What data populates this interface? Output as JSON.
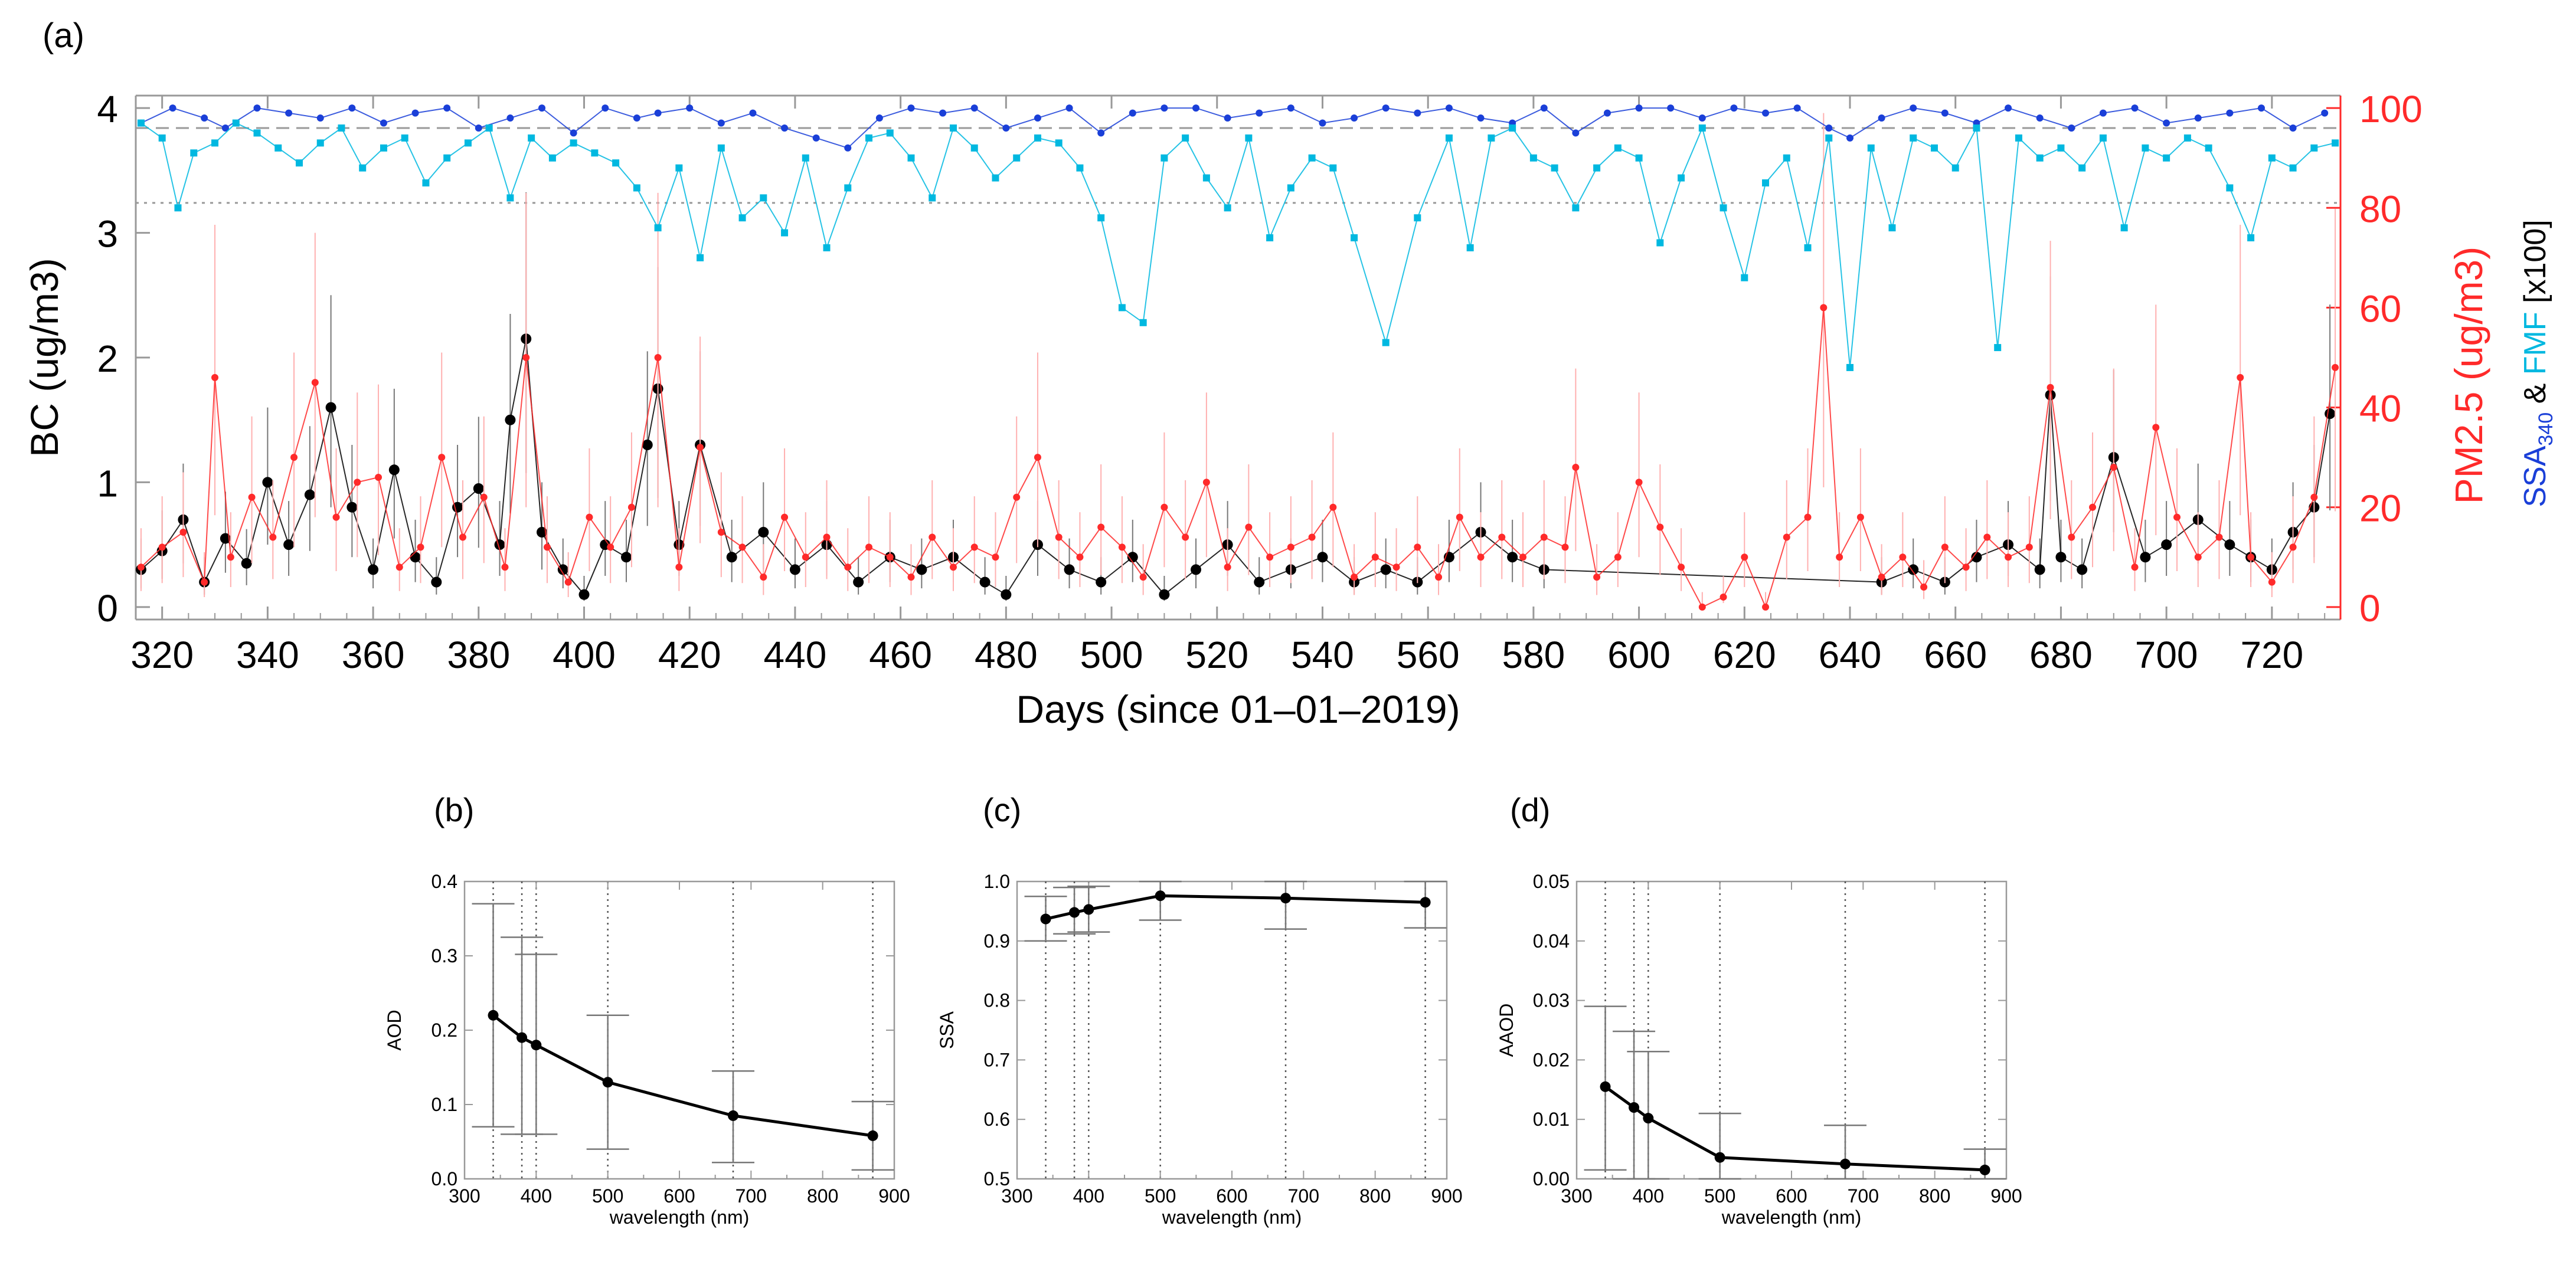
{
  "chart_data": [
    {
      "panel": "(a)",
      "type": "line",
      "title": "",
      "xlabel": "Days (since 01–01–2019)",
      "ylabel_left": "BC (ug/m3)",
      "ylabel_right_1": "PM2.5 (ug/m3)",
      "ylabel_right_2_parts": [
        "SSA",
        "340",
        " & ",
        "FMF",
        " [x100]"
      ],
      "xlim": [
        315,
        733
      ],
      "ylim_left": [
        -0.1,
        4.1
      ],
      "ylim_right": [
        -2.5,
        102.5
      ],
      "xticks": [
        320,
        340,
        360,
        380,
        400,
        420,
        440,
        460,
        480,
        500,
        520,
        540,
        560,
        580,
        600,
        620,
        640,
        660,
        680,
        700,
        720
      ],
      "yticks_left": [
        0,
        1,
        2,
        3,
        4
      ],
      "yticks_right": [
        0,
        20,
        40,
        60,
        80,
        100
      ],
      "ref_lines_right": [
        {
          "value": 96,
          "style": "dashed"
        },
        {
          "value": 81,
          "style": "dotted"
        }
      ],
      "colors": {
        "bc": "#000000",
        "pm25": "#ff2a2a",
        "ssa": "#1a3fd8",
        "fmf": "#00b8e0",
        "right_axis": "#ff2a2a"
      },
      "series": [
        {
          "name": "BC",
          "axis": "left",
          "x": [
            316,
            320,
            324,
            328,
            332,
            336,
            340,
            344,
            348,
            352,
            356,
            360,
            364,
            368,
            372,
            376,
            380,
            384,
            386,
            389,
            392,
            396,
            400,
            404,
            408,
            412,
            414,
            418,
            422,
            428,
            434,
            440,
            446,
            452,
            458,
            464,
            470,
            476,
            480,
            486,
            492,
            498,
            504,
            510,
            516,
            522,
            528,
            534,
            540,
            546,
            552,
            558,
            564,
            570,
            576,
            582,
            646,
            652,
            658,
            664,
            670,
            676,
            678,
            680,
            684,
            690,
            696,
            700,
            706,
            712,
            716,
            720,
            724,
            728,
            731
          ],
          "values": [
            0.3,
            0.45,
            0.7,
            0.2,
            0.55,
            0.35,
            1.0,
            0.5,
            0.9,
            1.6,
            0.8,
            0.3,
            1.1,
            0.4,
            0.2,
            0.8,
            0.95,
            0.5,
            1.5,
            2.15,
            0.6,
            0.3,
            0.1,
            0.5,
            0.4,
            1.3,
            1.75,
            0.5,
            1.3,
            0.4,
            0.6,
            0.3,
            0.5,
            0.2,
            0.4,
            0.3,
            0.4,
            0.2,
            0.1,
            0.5,
            0.3,
            0.2,
            0.4,
            0.1,
            0.3,
            0.5,
            0.2,
            0.3,
            0.4,
            0.2,
            0.3,
            0.2,
            0.4,
            0.6,
            0.4,
            0.3,
            0.2,
            0.3,
            0.2,
            0.4,
            0.5,
            0.3,
            1.7,
            0.4,
            0.3,
            1.2,
            0.4,
            0.5,
            0.7,
            0.5,
            0.4,
            0.3,
            0.6,
            0.8,
            1.55
          ]
        },
        {
          "name": "PM2.5",
          "axis": "right",
          "x": [
            316,
            320,
            324,
            328,
            330,
            333,
            337,
            341,
            345,
            349,
            353,
            357,
            361,
            365,
            369,
            373,
            377,
            381,
            385,
            389,
            393,
            397,
            401,
            405,
            409,
            414,
            418,
            422,
            426,
            430,
            434,
            438,
            442,
            446,
            450,
            454,
            458,
            462,
            466,
            470,
            474,
            478,
            482,
            486,
            490,
            494,
            498,
            502,
            506,
            510,
            514,
            518,
            522,
            526,
            530,
            534,
            538,
            542,
            546,
            550,
            554,
            558,
            562,
            566,
            570,
            574,
            578,
            582,
            586,
            588,
            592,
            596,
            600,
            604,
            608,
            612,
            616,
            620,
            624,
            628,
            632,
            635,
            638,
            642,
            646,
            650,
            654,
            658,
            662,
            666,
            670,
            674,
            678,
            682,
            686,
            690,
            694,
            698,
            702,
            706,
            710,
            714,
            716,
            720,
            724,
            728,
            732
          ],
          "values": [
            8,
            12,
            15,
            5,
            46,
            10,
            22,
            14,
            30,
            45,
            18,
            25,
            26,
            8,
            12,
            30,
            14,
            22,
            8,
            50,
            12,
            5,
            18,
            12,
            20,
            50,
            8,
            32,
            15,
            12,
            6,
            18,
            10,
            14,
            8,
            12,
            10,
            6,
            14,
            8,
            12,
            10,
            22,
            30,
            14,
            10,
            16,
            12,
            6,
            20,
            14,
            25,
            8,
            16,
            10,
            12,
            14,
            20,
            6,
            10,
            8,
            12,
            6,
            18,
            10,
            14,
            10,
            14,
            12,
            28,
            6,
            10,
            25,
            16,
            8,
            0,
            2,
            10,
            0,
            14,
            18,
            60,
            10,
            18,
            6,
            10,
            4,
            12,
            8,
            14,
            10,
            12,
            44,
            14,
            20,
            28,
            8,
            36,
            18,
            10,
            14,
            46,
            10,
            5,
            12,
            22,
            48
          ]
        },
        {
          "name": "SSA340 [x100]",
          "axis": "right",
          "x": [
            316,
            322,
            328,
            332,
            338,
            344,
            350,
            356,
            362,
            368,
            374,
            380,
            386,
            392,
            398,
            404,
            410,
            414,
            420,
            426,
            432,
            438,
            444,
            450,
            456,
            462,
            468,
            474,
            480,
            486,
            492,
            498,
            504,
            510,
            516,
            522,
            528,
            534,
            540,
            546,
            552,
            558,
            564,
            570,
            576,
            582,
            588,
            594,
            600,
            606,
            612,
            618,
            624,
            630,
            636,
            640,
            646,
            652,
            658,
            664,
            670,
            676,
            682,
            688,
            694,
            700,
            706,
            712,
            718,
            724,
            730
          ],
          "values": [
            97,
            100,
            98,
            96,
            100,
            99,
            98,
            100,
            97,
            99,
            100,
            96,
            98,
            100,
            95,
            100,
            98,
            99,
            100,
            97,
            99,
            96,
            94,
            92,
            98,
            100,
            99,
            100,
            96,
            98,
            100,
            95,
            99,
            100,
            100,
            98,
            99,
            100,
            97,
            98,
            100,
            99,
            100,
            98,
            97,
            100,
            95,
            99,
            100,
            100,
            98,
            100,
            99,
            100,
            96,
            94,
            98,
            100,
            99,
            97,
            100,
            98,
            96,
            99,
            100,
            97,
            98,
            99,
            100,
            96,
            99
          ]
        },
        {
          "name": "FMF [x100]",
          "axis": "right",
          "x": [
            316,
            320,
            323,
            326,
            330,
            334,
            338,
            342,
            346,
            350,
            354,
            358,
            362,
            366,
            370,
            374,
            378,
            382,
            386,
            390,
            394,
            398,
            402,
            406,
            410,
            414,
            418,
            422,
            426,
            430,
            434,
            438,
            442,
            446,
            450,
            454,
            458,
            462,
            466,
            470,
            474,
            478,
            482,
            486,
            490,
            494,
            498,
            502,
            506,
            510,
            514,
            518,
            522,
            526,
            530,
            534,
            538,
            542,
            546,
            552,
            558,
            564,
            568,
            572,
            576,
            580,
            584,
            588,
            592,
            596,
            600,
            604,
            608,
            612,
            616,
            620,
            624,
            628,
            632,
            636,
            640,
            644,
            648,
            652,
            656,
            660,
            664,
            668,
            672,
            676,
            680,
            684,
            688,
            692,
            696,
            700,
            704,
            708,
            712,
            716,
            720,
            724,
            728,
            732
          ],
          "values": [
            97,
            94,
            80,
            91,
            93,
            97,
            95,
            92,
            89,
            93,
            96,
            88,
            92,
            94,
            85,
            90,
            93,
            96,
            82,
            94,
            90,
            93,
            91,
            89,
            84,
            76,
            88,
            70,
            92,
            78,
            82,
            75,
            90,
            72,
            84,
            94,
            95,
            90,
            82,
            96,
            92,
            86,
            90,
            94,
            93,
            88,
            78,
            60,
            57,
            90,
            94,
            86,
            80,
            94,
            74,
            84,
            90,
            88,
            74,
            53,
            78,
            94,
            72,
            94,
            96,
            90,
            88,
            80,
            88,
            92,
            90,
            73,
            86,
            96,
            80,
            66,
            85,
            90,
            72,
            94,
            48,
            92,
            76,
            94,
            92,
            88,
            96,
            52,
            94,
            90,
            92,
            88,
            94,
            76,
            92,
            90,
            94,
            92,
            84,
            74,
            90,
            88,
            92,
            93
          ]
        }
      ]
    },
    {
      "panel": "(b)",
      "type": "line",
      "xlabel": "wavelength (nm)",
      "ylabel": "AOD",
      "xlim": [
        300,
        900
      ],
      "ylim": [
        0.0,
        0.4
      ],
      "xticks": [
        300,
        400,
        500,
        600,
        700,
        800,
        900
      ],
      "yticks": [
        0.0,
        0.1,
        0.2,
        0.3,
        0.4
      ],
      "ytick_labels": [
        "0.0",
        "0.1",
        "0.2",
        "0.3",
        "0.4"
      ],
      "vlines": [
        340,
        380,
        400,
        500,
        675,
        870
      ],
      "x": [
        340,
        380,
        400,
        500,
        675,
        870
      ],
      "values": [
        0.22,
        0.19,
        0.18,
        0.13,
        0.085,
        0.058
      ],
      "err_low": [
        0.07,
        0.06,
        0.06,
        0.04,
        0.022,
        0.012
      ],
      "err_high": [
        0.37,
        0.325,
        0.302,
        0.22,
        0.145,
        0.104
      ]
    },
    {
      "panel": "(c)",
      "type": "line",
      "xlabel": "wavelength (nm)",
      "ylabel": "SSA",
      "xlim": [
        300,
        900
      ],
      "ylim": [
        0.5,
        1.0
      ],
      "xticks": [
        300,
        400,
        500,
        600,
        700,
        800,
        900
      ],
      "yticks": [
        0.5,
        0.6,
        0.7,
        0.8,
        0.9,
        1.0
      ],
      "ytick_labels": [
        "0.5",
        "0.6",
        "0.7",
        "0.8",
        "0.9",
        "1.0"
      ],
      "vlines": [
        340,
        380,
        400,
        500,
        675,
        870
      ],
      "x": [
        340,
        380,
        400,
        500,
        675,
        870
      ],
      "values": [
        0.937,
        0.948,
        0.953,
        0.976,
        0.972,
        0.965
      ],
      "err_low": [
        0.9,
        0.912,
        0.915,
        0.935,
        0.92,
        0.922
      ],
      "err_high": [
        0.975,
        0.99,
        0.992,
        1.0,
        1.0,
        1.0
      ]
    },
    {
      "panel": "(d)",
      "type": "line",
      "xlabel": "wavelength (nm)",
      "ylabel": "AAOD",
      "xlim": [
        300,
        900
      ],
      "ylim": [
        0.0,
        0.05
      ],
      "xticks": [
        300,
        400,
        500,
        600,
        700,
        800,
        900
      ],
      "yticks": [
        0.0,
        0.01,
        0.02,
        0.03,
        0.04,
        0.05
      ],
      "ytick_labels": [
        "0.00",
        "0.01",
        "0.02",
        "0.03",
        "0.04",
        "0.05"
      ],
      "vlines": [
        340,
        380,
        400,
        500,
        675,
        870
      ],
      "x": [
        340,
        380,
        400,
        500,
        675,
        870
      ],
      "values": [
        0.0155,
        0.012,
        0.0102,
        0.0036,
        0.0025,
        0.0015
      ],
      "err_low": [
        0.0015,
        0.0,
        0.0,
        0.0,
        0.0,
        0.0
      ],
      "err_high": [
        0.029,
        0.0248,
        0.0214,
        0.011,
        0.009,
        0.005
      ]
    }
  ]
}
